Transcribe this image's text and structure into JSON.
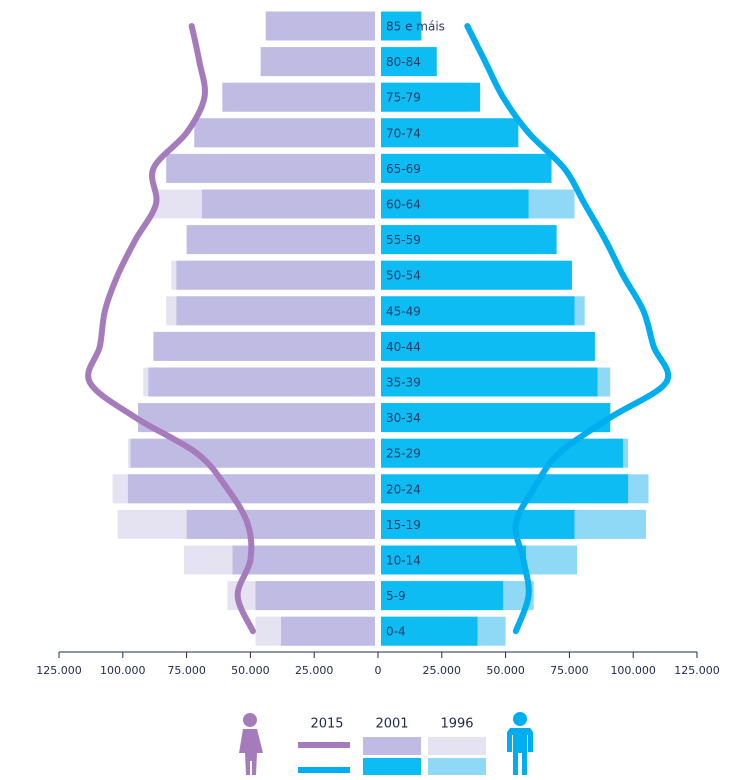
{
  "chart_data": {
    "type": "pyramid",
    "categories": [
      "85 e máis",
      "80-84",
      "75-79",
      "70-74",
      "65-69",
      "60-64",
      "55-59",
      "50-54",
      "45-49",
      "40-44",
      "35-39",
      "30-34",
      "25-29",
      "20-24",
      "15-19",
      "10-14",
      "5-9",
      "0-4"
    ],
    "series": [
      {
        "name": "1996",
        "mark": "bar",
        "female_color": "#e5e3f2",
        "male_color": "#8fd8f6",
        "female_values": [
          36000,
          43000,
          57000,
          71000,
          80000,
          88000,
          74000,
          81000,
          83000,
          84000,
          92000,
          94000,
          98000,
          104000,
          102000,
          76000,
          59000,
          48000
        ],
        "male_values": [
          16000,
          23000,
          35000,
          52000,
          66000,
          77000,
          63000,
          74000,
          81000,
          83000,
          91000,
          91000,
          98000,
          106000,
          105000,
          78000,
          61000,
          50000
        ]
      },
      {
        "name": "2001",
        "mark": "bar",
        "female_color": "#bfbbe2",
        "male_color": "#0dbcf2",
        "female_values": [
          44000,
          46000,
          61000,
          72000,
          83000,
          69000,
          75000,
          79000,
          79000,
          88000,
          90000,
          94000,
          97000,
          98000,
          75000,
          57000,
          48000,
          38000
        ],
        "male_values": [
          17000,
          23000,
          40000,
          55000,
          68000,
          59000,
          70000,
          76000,
          77000,
          85000,
          86000,
          91000,
          96000,
          98000,
          77000,
          58000,
          49000,
          39000
        ]
      },
      {
        "name": "2015",
        "mark": "line",
        "female_color": "#a67bbb",
        "male_color": "#00aeef",
        "female_values": [
          73000,
          70000,
          68000,
          75000,
          88000,
          87000,
          95000,
          102000,
          107000,
          109000,
          113000,
          95000,
          71000,
          59000,
          51000,
          50000,
          55000,
          49000
        ],
        "male_values": [
          35000,
          42000,
          49000,
          59000,
          73000,
          81000,
          89000,
          96000,
          104000,
          108000,
          113000,
          91000,
          71000,
          61000,
          54000,
          57000,
          59000,
          54000
        ]
      }
    ],
    "xlim": [
      -125000,
      125000
    ],
    "xticks": [
      {
        "value": -125000,
        "label": "125.000"
      },
      {
        "value": -100000,
        "label": "100.000"
      },
      {
        "value": -75000,
        "label": "75.000"
      },
      {
        "value": -50000,
        "label": "50.000"
      },
      {
        "value": -25000,
        "label": "25.000"
      },
      0,
      {
        "value": 25000,
        "label": "25.000"
      },
      {
        "value": 50000,
        "label": "50.000"
      },
      {
        "value": 75000,
        "label": "75.000"
      },
      {
        "value": 100000,
        "label": "100.000"
      },
      {
        "value": 125000,
        "label": "125.000"
      }
    ]
  }
}
